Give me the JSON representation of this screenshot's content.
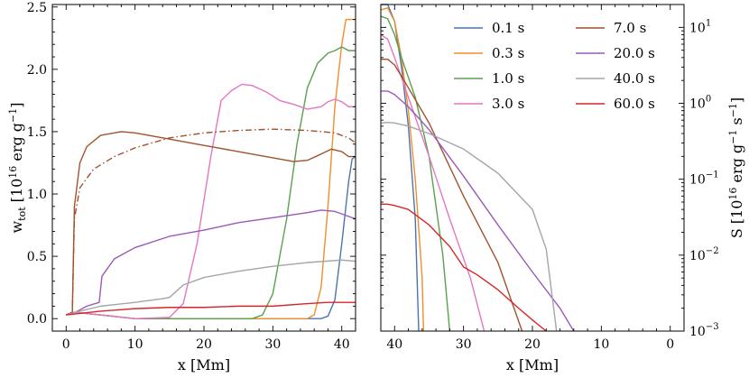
{
  "chart_data": [
    {
      "type": "line",
      "panel": "left",
      "xlabel": "x [Mm]",
      "ylabel_main": "w",
      "ylabel_sub": "tot",
      "ylabel_unit_pre": "[10",
      "ylabel_unit_exp": "16",
      "ylabel_unit_mid": " erg g",
      "ylabel_unit_exp2": "−1",
      "ylabel_unit_post": "]",
      "xlim": [
        -2,
        42
      ],
      "ylim": [
        -0.1,
        2.52
      ],
      "xticks": [
        0,
        10,
        20,
        30,
        40
      ],
      "xtick_labels": [
        "0",
        "10",
        "20",
        "30",
        "40"
      ],
      "yticks": [
        0.0,
        0.5,
        1.0,
        1.5,
        2.0,
        2.5
      ],
      "ytick_labels": [
        "0.0",
        "0.5",
        "1.0",
        "1.5",
        "2.0",
        "2.5"
      ],
      "series": [
        {
          "name": "0.1 s",
          "color": "#4c72b0",
          "dash": "",
          "points": [
            [
              0,
              0.03
            ],
            [
              1,
              0.05
            ],
            [
              1.5,
              0.05
            ],
            [
              10,
              0.0
            ],
            [
              30,
              0.0
            ],
            [
              37,
              0.0
            ],
            [
              38,
              0.02
            ],
            [
              39,
              0.15
            ],
            [
              40,
              0.6
            ],
            [
              41,
              1.1
            ],
            [
              41.5,
              1.28
            ],
            [
              42,
              1.3
            ]
          ]
        },
        {
          "name": "0.3 s",
          "color": "#f28e2b",
          "dash": "",
          "points": [
            [
              0,
              0.03
            ],
            [
              1,
              0.05
            ],
            [
              1.5,
              0.05
            ],
            [
              10,
              0.0
            ],
            [
              30,
              0.0
            ],
            [
              35,
              0.0
            ],
            [
              36,
              0.03
            ],
            [
              37,
              0.25
            ],
            [
              38,
              0.9
            ],
            [
              39,
              1.7
            ],
            [
              40,
              2.2
            ],
            [
              40.6,
              2.4
            ],
            [
              42,
              2.4
            ]
          ]
        },
        {
          "name": "1.0 s",
          "color": "#59a14f",
          "dash": "",
          "points": [
            [
              0,
              0.03
            ],
            [
              1,
              0.05
            ],
            [
              1.5,
              0.05
            ],
            [
              10,
              0.0
            ],
            [
              27,
              0.0
            ],
            [
              28.5,
              0.03
            ],
            [
              30,
              0.2
            ],
            [
              32,
              0.8
            ],
            [
              33.5,
              1.4
            ],
            [
              35,
              1.85
            ],
            [
              36.5,
              2.05
            ],
            [
              38,
              2.13
            ],
            [
              39,
              2.15
            ],
            [
              40,
              2.18
            ],
            [
              41,
              2.15
            ],
            [
              42,
              2.15
            ]
          ]
        },
        {
          "name": "3.0 s",
          "color": "#e377c2",
          "dash": "",
          "points": [
            [
              0,
              0.03
            ],
            [
              1,
              0.05
            ],
            [
              1.5,
              0.05
            ],
            [
              10,
              0.0
            ],
            [
              15,
              0.01
            ],
            [
              17,
              0.12
            ],
            [
              19,
              0.6
            ],
            [
              21,
              1.3
            ],
            [
              22.5,
              1.75
            ],
            [
              24,
              1.83
            ],
            [
              25.5,
              1.88
            ],
            [
              27,
              1.87
            ],
            [
              29,
              1.82
            ],
            [
              31,
              1.75
            ],
            [
              33,
              1.72
            ],
            [
              35,
              1.68
            ],
            [
              37,
              1.7
            ],
            [
              38,
              1.74
            ],
            [
              39,
              1.76
            ],
            [
              40,
              1.74
            ],
            [
              41,
              1.7
            ],
            [
              42,
              1.7
            ]
          ]
        },
        {
          "name": "7.0 s",
          "color": "#a0522d",
          "dash": "",
          "points": [
            [
              0,
              0.03
            ],
            [
              0.9,
              0.05
            ],
            [
              1.2,
              0.9
            ],
            [
              2,
              1.25
            ],
            [
              3,
              1.38
            ],
            [
              5,
              1.47
            ],
            [
              8,
              1.5
            ],
            [
              10,
              1.49
            ],
            [
              15,
              1.44
            ],
            [
              20,
              1.39
            ],
            [
              25,
              1.34
            ],
            [
              30,
              1.29
            ],
            [
              33,
              1.26
            ],
            [
              35,
              1.27
            ],
            [
              37,
              1.32
            ],
            [
              38.5,
              1.36
            ],
            [
              40,
              1.34
            ],
            [
              41,
              1.3
            ],
            [
              42,
              1.3
            ]
          ]
        },
        {
          "name": "7.0 s (dash-dot)",
          "color": "#a0522d",
          "dash": "7,3,1.5,3",
          "points": [
            [
              0,
              0.03
            ],
            [
              0.9,
              0.05
            ],
            [
              1.2,
              0.8
            ],
            [
              2,
              1.05
            ],
            [
              4,
              1.2
            ],
            [
              7,
              1.3
            ],
            [
              10,
              1.37
            ],
            [
              15,
              1.45
            ],
            [
              20,
              1.49
            ],
            [
              25,
              1.51
            ],
            [
              30,
              1.52
            ],
            [
              35,
              1.51
            ],
            [
              39,
              1.49
            ],
            [
              41,
              1.45
            ],
            [
              42,
              1.41
            ]
          ]
        },
        {
          "name": "20.0 s",
          "color": "#9b59b6",
          "dash": "",
          "points": [
            [
              0,
              0.03
            ],
            [
              1,
              0.04
            ],
            [
              3,
              0.1
            ],
            [
              4.8,
              0.13
            ],
            [
              5.2,
              0.34
            ],
            [
              7,
              0.48
            ],
            [
              10,
              0.57
            ],
            [
              15,
              0.66
            ],
            [
              20,
              0.71
            ],
            [
              25,
              0.77
            ],
            [
              30,
              0.81
            ],
            [
              35,
              0.85
            ],
            [
              37,
              0.87
            ],
            [
              39,
              0.86
            ],
            [
              41,
              0.82
            ],
            [
              42,
              0.8
            ]
          ]
        },
        {
          "name": "40.0 s",
          "color": "#a5a5a5",
          "dash": "",
          "points": [
            [
              0,
              0.03
            ],
            [
              2,
              0.06
            ],
            [
              5,
              0.1
            ],
            [
              10,
              0.13
            ],
            [
              14,
              0.16
            ],
            [
              15,
              0.17
            ],
            [
              17,
              0.27
            ],
            [
              20,
              0.33
            ],
            [
              25,
              0.38
            ],
            [
              30,
              0.42
            ],
            [
              35,
              0.45
            ],
            [
              40,
              0.47
            ],
            [
              42,
              0.46
            ]
          ]
        },
        {
          "name": "60.0 s",
          "color": "#d62728",
          "dash": "",
          "points": [
            [
              0,
              0.03
            ],
            [
              5,
              0.06
            ],
            [
              10,
              0.08
            ],
            [
              15,
              0.09
            ],
            [
              20,
              0.09
            ],
            [
              25,
              0.1
            ],
            [
              30,
              0.1
            ],
            [
              35,
              0.12
            ],
            [
              38,
              0.13
            ],
            [
              42,
              0.13
            ]
          ]
        }
      ]
    },
    {
      "type": "line",
      "panel": "right",
      "yscale": "log",
      "xlabel": "x [Mm]",
      "ylabel_main": "S",
      "ylabel_unit_pre": "[10",
      "ylabel_unit_exp": "16",
      "ylabel_unit_mid": " erg g",
      "ylabel_unit_exp2": "−1",
      "ylabel_unit_mid2": " s",
      "ylabel_unit_exp3": "−1",
      "ylabel_unit_post": "]",
      "xlim": [
        42,
        -2
      ],
      "ylim": [
        0.001,
        20
      ],
      "xticks": [
        40,
        30,
        20,
        10,
        0
      ],
      "xtick_labels": [
        "40",
        "30",
        "20",
        "10",
        "0"
      ],
      "yticks_major": [
        0.001,
        0.01,
        0.1,
        1,
        10
      ],
      "ytick_base": "10",
      "ytick_exps": [
        "−3",
        "−2",
        "−1",
        "0",
        "1"
      ],
      "legend": {
        "placement": "top-right",
        "entries": [
          {
            "label": "0.1 s",
            "color": "#4c72b0"
          },
          {
            "label": "7.0 s",
            "color": "#a0522d"
          },
          {
            "label": "0.3 s",
            "color": "#f28e2b"
          },
          {
            "label": "20.0 s",
            "color": "#9b59b6"
          },
          {
            "label": "1.0 s",
            "color": "#59a14f"
          },
          {
            "label": "40.0 s",
            "color": "#a5a5a5"
          },
          {
            "label": "3.0 s",
            "color": "#e377c2"
          },
          {
            "label": "60.0 s",
            "color": "#d62728"
          }
        ]
      },
      "series": [
        {
          "name": "0.1 s",
          "color": "#4c72b0",
          "points": [
            [
              42,
              20
            ],
            [
              41,
              20
            ],
            [
              40,
              12
            ],
            [
              39,
              3
            ],
            [
              38,
              0.5
            ],
            [
              37,
              0.03
            ],
            [
              36.5,
              0.001
            ]
          ]
        },
        {
          "name": "0.3 s",
          "color": "#f28e2b",
          "points": [
            [
              42,
              17
            ],
            [
              41,
              18
            ],
            [
              40,
              12
            ],
            [
              39,
              4
            ],
            [
              38,
              0.8
            ],
            [
              37,
              0.1
            ],
            [
              36,
              0.005
            ],
            [
              35.8,
              0.001
            ]
          ]
        },
        {
          "name": "1.0 s",
          "color": "#59a14f",
          "points": [
            [
              42,
              14
            ],
            [
              41,
              13
            ],
            [
              40,
              8
            ],
            [
              39,
              4
            ],
            [
              37,
              1.2
            ],
            [
              35,
              0.2
            ],
            [
              33,
              0.01
            ],
            [
              32,
              0.001
            ]
          ]
        },
        {
          "name": "3.0 s",
          "color": "#e377c2",
          "points": [
            [
              42,
              8
            ],
            [
              41,
              7
            ],
            [
              40,
              4
            ],
            [
              38,
              1.2
            ],
            [
              35,
              0.2
            ],
            [
              32,
              0.03
            ],
            [
              29,
              0.005
            ],
            [
              27,
              0.001
            ]
          ]
        },
        {
          "name": "7.0 s",
          "color": "#a0522d",
          "points": [
            [
              42,
              3.8
            ],
            [
              41,
              3.8
            ],
            [
              40,
              3.2
            ],
            [
              38,
              1.6
            ],
            [
              35,
              0.55
            ],
            [
              30,
              0.06
            ],
            [
              25,
              0.008
            ],
            [
              21.5,
              0.001
            ]
          ]
        },
        {
          "name": "20.0 s",
          "color": "#9b59b6",
          "points": [
            [
              42,
              1.45
            ],
            [
              41,
              1.45
            ],
            [
              40,
              1.3
            ],
            [
              38,
              0.9
            ],
            [
              35,
              0.45
            ],
            [
              30,
              0.11
            ],
            [
              25,
              0.025
            ],
            [
              20,
              0.006
            ],
            [
              16,
              0.002
            ],
            [
              14,
              0.001
            ]
          ]
        },
        {
          "name": "40.0 s",
          "color": "#a5a5a5",
          "points": [
            [
              42,
              0.55
            ],
            [
              41,
              0.56
            ],
            [
              40,
              0.55
            ],
            [
              38,
              0.5
            ],
            [
              35,
              0.4
            ],
            [
              30,
              0.25
            ],
            [
              25,
              0.12
            ],
            [
              20,
              0.04
            ],
            [
              18,
              0.012
            ],
            [
              16.5,
              0.001
            ]
          ]
        },
        {
          "name": "60.0 s",
          "color": "#d62728",
          "points": [
            [
              42,
              0.047
            ],
            [
              41,
              0.047
            ],
            [
              40,
              0.045
            ],
            [
              38,
              0.04
            ],
            [
              35,
              0.025
            ],
            [
              32,
              0.013
            ],
            [
              30,
              0.007
            ],
            [
              28,
              0.0055
            ],
            [
              25,
              0.0035
            ],
            [
              22,
              0.002
            ],
            [
              20,
              0.0014
            ],
            [
              18,
              0.001
            ]
          ]
        }
      ]
    }
  ]
}
